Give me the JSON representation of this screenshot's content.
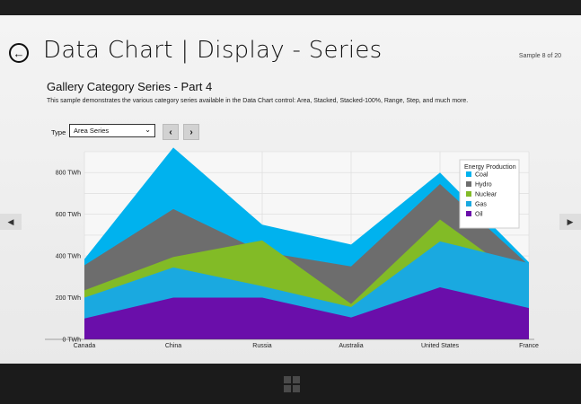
{
  "header": {
    "title": "Data Chart  |  Display - Series",
    "sample_counter": "Sample 8 of 20"
  },
  "content": {
    "subtitle": "Gallery Category Series - Part 4",
    "description": "This sample demonstrates the various category series available in the Data Chart control: Area, Stacked, Stacked-100%, Range, Step, and much more."
  },
  "controls": {
    "type_label": "Type",
    "type_selected": "Area Series",
    "prev_glyph": "‹",
    "next_glyph": "›"
  },
  "icons": {
    "back": "arrow-left-circle-icon",
    "prev": "chevron-left-icon",
    "next": "chevron-right-icon",
    "windows": "windows-logo-icon"
  },
  "chart_data": {
    "type": "area",
    "title": "",
    "xlabel": "",
    "ylabel": "",
    "categories": [
      "Canada",
      "China",
      "Russia",
      "Australia",
      "United States",
      "France"
    ],
    "y_ticks": [
      "0 TWh",
      "200 TWh",
      "400 TWh",
      "600 TWh",
      "800 TWh"
    ],
    "ylim": [
      0,
      900
    ],
    "grid": true,
    "legend_title": "Energy Production",
    "legend_position": "top-right",
    "series": [
      {
        "name": "Coal",
        "color": "#00b2ee",
        "values": [
          385,
          920,
          550,
          455,
          800,
          370
        ]
      },
      {
        "name": "Hydro",
        "color": "#6d6d6d",
        "values": [
          355,
          625,
          420,
          350,
          745,
          355
        ]
      },
      {
        "name": "Nuclear",
        "color": "#82bb26",
        "values": [
          235,
          395,
          475,
          170,
          575,
          265
        ]
      },
      {
        "name": "Gas",
        "color": "#1aa9e0",
        "values": [
          200,
          345,
          255,
          155,
          470,
          365
        ]
      },
      {
        "name": "Oil",
        "color": "#6a0eaa",
        "values": [
          100,
          200,
          200,
          105,
          250,
          150
        ]
      }
    ]
  }
}
